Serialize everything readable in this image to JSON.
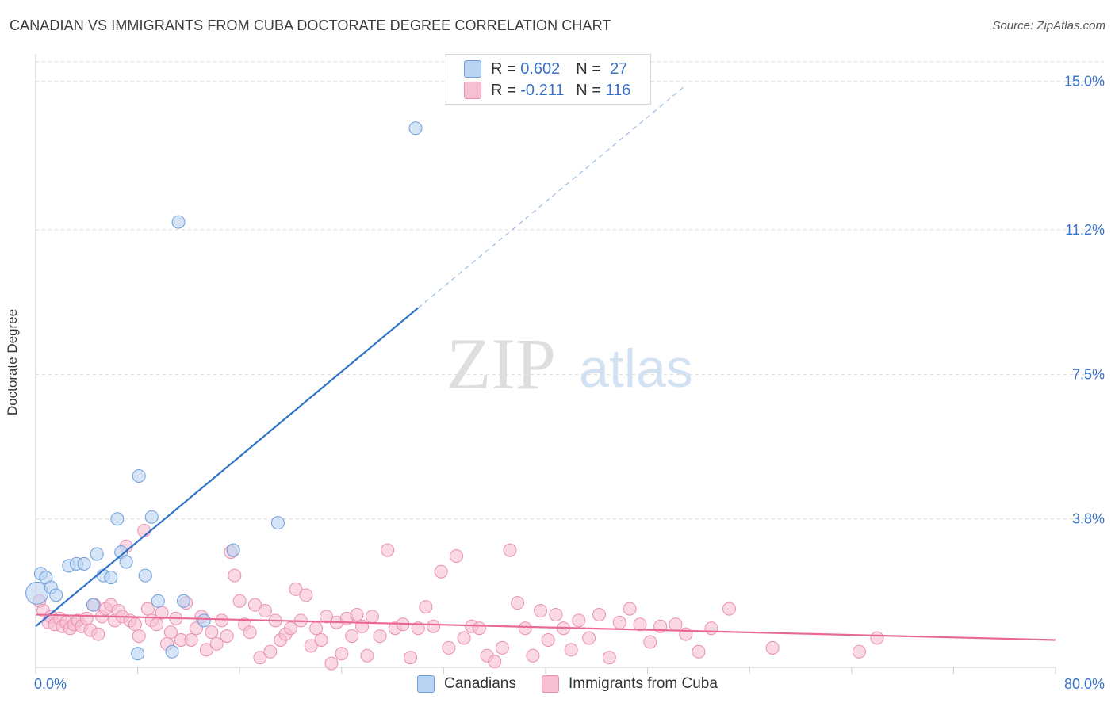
{
  "title": "CANADIAN VS IMMIGRANTS FROM CUBA DOCTORATE DEGREE CORRELATION CHART",
  "source": "Source: ZipAtlas.com",
  "watermark": {
    "zip": "ZIP",
    "atlas": "atlas"
  },
  "legend": {
    "r_label": "R =",
    "n_label": "N =",
    "canadians": {
      "r": "0.602",
      "n": "27"
    },
    "cuba": {
      "r": "-0.211",
      "n": "116"
    }
  },
  "colors": {
    "blue_fill": "#b9d3f2",
    "blue_stroke": "#6f9fdb",
    "blue_line": "#2f72cc",
    "pink_fill": "#f7bfd2",
    "pink_stroke": "#ea8fb0",
    "pink_line": "#e86a94",
    "tick_text": "#3a73c8",
    "grid": "#d9d9d9"
  },
  "chart_data": {
    "type": "scatter",
    "title": "CANADIAN VS IMMIGRANTS FROM CUBA DOCTORATE DEGREE CORRELATION CHART",
    "xlabel": "",
    "ylabel": "Doctorate Degree",
    "xlim": [
      0,
      80
    ],
    "ylim": [
      0,
      15.5
    ],
    "x_tick_labels": [
      "0.0%",
      "80.0%"
    ],
    "y_ticks": [
      {
        "value": 3.8,
        "label": "3.8%"
      },
      {
        "value": 7.5,
        "label": "7.5%"
      },
      {
        "value": 11.2,
        "label": "11.2%"
      },
      {
        "value": 15.0,
        "label": "15.0%"
      }
    ],
    "series": [
      {
        "name": "Canadians",
        "r": 0.602,
        "n": 27,
        "trend": {
          "x0": 0,
          "y0": 1.05,
          "x1": 30,
          "y1": 9.2,
          "dash_to_x": 51,
          "dash_to_y": 14.9
        },
        "points": [
          [
            0.1,
            1.9
          ],
          [
            0.4,
            2.4
          ],
          [
            0.8,
            2.3
          ],
          [
            1.2,
            2.05
          ],
          [
            1.6,
            1.85
          ],
          [
            2.6,
            2.6
          ],
          [
            3.2,
            2.65
          ],
          [
            3.8,
            2.65
          ],
          [
            4.5,
            1.6
          ],
          [
            4.8,
            2.9
          ],
          [
            5.3,
            2.35
          ],
          [
            5.9,
            2.3
          ],
          [
            6.4,
            3.8
          ],
          [
            6.7,
            2.95
          ],
          [
            7.1,
            2.7
          ],
          [
            8.0,
            0.35
          ],
          [
            8.1,
            4.9
          ],
          [
            8.6,
            2.35
          ],
          [
            9.1,
            3.85
          ],
          [
            9.6,
            1.7
          ],
          [
            10.7,
            0.4
          ],
          [
            11.2,
            11.4
          ],
          [
            11.6,
            1.7
          ],
          [
            13.2,
            1.2
          ],
          [
            15.5,
            3.0
          ],
          [
            19.0,
            3.7
          ],
          [
            29.8,
            13.8
          ]
        ]
      },
      {
        "name": "Immigrants from Cuba",
        "r": -0.211,
        "n": 116,
        "trend": {
          "x0": 0,
          "y0": 1.35,
          "x1": 80,
          "y1": 0.7
        },
        "points": [
          [
            0.3,
            1.7
          ],
          [
            0.6,
            1.45
          ],
          [
            1.0,
            1.15
          ],
          [
            1.2,
            1.3
          ],
          [
            1.5,
            1.1
          ],
          [
            1.9,
            1.25
          ],
          [
            2.1,
            1.05
          ],
          [
            2.4,
            1.15
          ],
          [
            2.7,
            1.0
          ],
          [
            3.0,
            1.1
          ],
          [
            3.3,
            1.2
          ],
          [
            3.6,
            1.05
          ],
          [
            4.0,
            1.25
          ],
          [
            4.3,
            0.95
          ],
          [
            4.6,
            1.6
          ],
          [
            4.9,
            0.85
          ],
          [
            5.2,
            1.3
          ],
          [
            5.5,
            1.5
          ],
          [
            5.9,
            1.6
          ],
          [
            6.2,
            1.2
          ],
          [
            6.5,
            1.45
          ],
          [
            6.8,
            1.3
          ],
          [
            7.1,
            3.1
          ],
          [
            7.4,
            1.2
          ],
          [
            7.8,
            1.1
          ],
          [
            8.1,
            0.8
          ],
          [
            8.5,
            3.5
          ],
          [
            8.8,
            1.5
          ],
          [
            9.1,
            1.2
          ],
          [
            9.5,
            1.1
          ],
          [
            9.9,
            1.4
          ],
          [
            10.3,
            0.6
          ],
          [
            10.6,
            0.9
          ],
          [
            11.0,
            1.25
          ],
          [
            11.4,
            0.7
          ],
          [
            11.8,
            1.65
          ],
          [
            12.2,
            0.7
          ],
          [
            12.6,
            1.0
          ],
          [
            13.0,
            1.3
          ],
          [
            13.4,
            0.45
          ],
          [
            13.8,
            0.9
          ],
          [
            14.2,
            0.6
          ],
          [
            14.6,
            1.2
          ],
          [
            15.0,
            0.8
          ],
          [
            15.3,
            2.95
          ],
          [
            15.6,
            2.35
          ],
          [
            16.0,
            1.7
          ],
          [
            16.4,
            1.1
          ],
          [
            16.8,
            0.9
          ],
          [
            17.2,
            1.6
          ],
          [
            17.6,
            0.25
          ],
          [
            18.0,
            1.45
          ],
          [
            18.4,
            0.4
          ],
          [
            18.8,
            1.2
          ],
          [
            19.2,
            0.7
          ],
          [
            19.6,
            0.85
          ],
          [
            20.0,
            1.0
          ],
          [
            20.4,
            2.0
          ],
          [
            20.8,
            1.2
          ],
          [
            21.2,
            1.85
          ],
          [
            21.6,
            0.55
          ],
          [
            22.0,
            1.0
          ],
          [
            22.4,
            0.7
          ],
          [
            22.8,
            1.3
          ],
          [
            23.2,
            0.1
          ],
          [
            23.6,
            1.15
          ],
          [
            24.0,
            0.35
          ],
          [
            24.4,
            1.25
          ],
          [
            24.8,
            0.8
          ],
          [
            25.2,
            1.35
          ],
          [
            25.6,
            1.05
          ],
          [
            26.0,
            0.3
          ],
          [
            26.4,
            1.3
          ],
          [
            27.0,
            0.8
          ],
          [
            27.6,
            3.0
          ],
          [
            28.2,
            1.0
          ],
          [
            28.8,
            1.1
          ],
          [
            29.4,
            0.25
          ],
          [
            30.0,
            1.0
          ],
          [
            30.6,
            1.55
          ],
          [
            31.2,
            1.05
          ],
          [
            31.8,
            2.45
          ],
          [
            32.4,
            0.5
          ],
          [
            33.0,
            2.85
          ],
          [
            33.6,
            0.75
          ],
          [
            34.2,
            1.05
          ],
          [
            34.8,
            1.0
          ],
          [
            35.4,
            0.3
          ],
          [
            36.0,
            0.15
          ],
          [
            36.6,
            0.5
          ],
          [
            37.2,
            3.0
          ],
          [
            37.8,
            1.65
          ],
          [
            38.4,
            1.0
          ],
          [
            39.0,
            0.3
          ],
          [
            39.6,
            1.45
          ],
          [
            40.2,
            0.7
          ],
          [
            40.8,
            1.35
          ],
          [
            41.4,
            1.0
          ],
          [
            42.0,
            0.45
          ],
          [
            42.6,
            1.2
          ],
          [
            43.4,
            0.75
          ],
          [
            44.2,
            1.35
          ],
          [
            45.0,
            0.25
          ],
          [
            45.8,
            1.15
          ],
          [
            46.6,
            1.5
          ],
          [
            47.4,
            1.1
          ],
          [
            48.2,
            0.65
          ],
          [
            49.0,
            1.05
          ],
          [
            50.2,
            1.1
          ],
          [
            51.0,
            0.85
          ],
          [
            52.0,
            0.4
          ],
          [
            53.0,
            1.0
          ],
          [
            54.4,
            1.5
          ],
          [
            57.8,
            0.5
          ],
          [
            64.6,
            0.4
          ],
          [
            66.0,
            0.75
          ]
        ]
      }
    ],
    "legend_position": "top-center"
  },
  "bottom_legend": {
    "canadians": "Canadians",
    "cuba": "Immigrants from Cuba"
  }
}
